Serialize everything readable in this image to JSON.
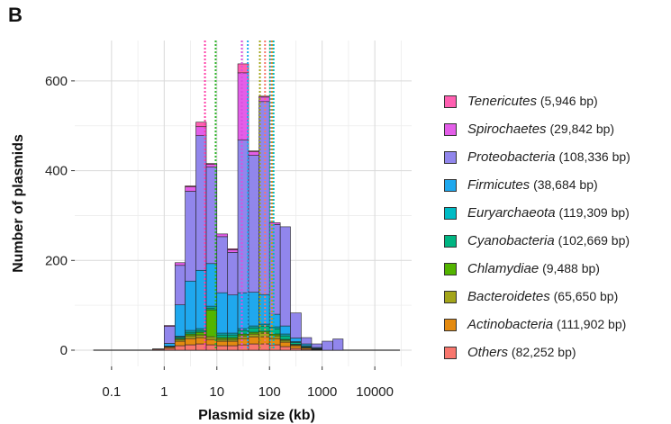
{
  "panel_label": "B",
  "chart_data": {
    "type": "bar",
    "stacked": true,
    "xscale": "log",
    "xlabel": "Plasmid size (kb)",
    "ylabel": "Number of plasmids",
    "ylim": [
      0,
      690
    ],
    "xlim": [
      0.02,
      50000
    ],
    "x_ticks": [
      0.1,
      1,
      10,
      100,
      1000,
      10000
    ],
    "x_tick_labels": [
      "0.1",
      "1",
      "10",
      "100",
      "1000",
      "10000"
    ],
    "y_ticks": [
      0,
      200,
      400,
      600
    ],
    "y_tick_labels": [
      "0",
      "200",
      "400",
      "600"
    ],
    "grid": true,
    "legend_position": "right",
    "bins_kb": [
      [
        0.6,
        1.0
      ],
      [
        1.0,
        1.6
      ],
      [
        1.6,
        2.5
      ],
      [
        2.5,
        4.0
      ],
      [
        4.0,
        6.3
      ],
      [
        6.3,
        10
      ],
      [
        10,
        16
      ],
      [
        16,
        25
      ],
      [
        25,
        40
      ],
      [
        40,
        63
      ],
      [
        63,
        100
      ],
      [
        100,
        160
      ],
      [
        160,
        250
      ],
      [
        250,
        400
      ],
      [
        400,
        630
      ],
      [
        630,
        1000
      ],
      [
        1000,
        1600
      ],
      [
        1600,
        2500
      ]
    ],
    "series": [
      {
        "name": "Others",
        "size": "(82,252 bp)",
        "color": "#f8766d",
        "values": [
          2,
          4,
          10,
          12,
          14,
          12,
          10,
          10,
          12,
          14,
          14,
          12,
          8,
          4,
          2,
          1,
          0,
          0
        ]
      },
      {
        "name": "Actinobacteria",
        "size": "(111,902 bp)",
        "color": "#e48a10",
        "values": [
          1,
          3,
          10,
          14,
          14,
          12,
          10,
          10,
          14,
          16,
          16,
          14,
          10,
          6,
          3,
          1,
          0,
          0
        ]
      },
      {
        "name": "Bacteroidetes",
        "size": "(65,650 bp)",
        "color": "#a3a51a",
        "values": [
          0,
          1,
          4,
          6,
          6,
          6,
          4,
          4,
          6,
          6,
          8,
          6,
          4,
          2,
          1,
          0,
          0,
          0
        ]
      },
      {
        "name": "Chlamydiae",
        "size": "(9,488 bp)",
        "color": "#53b400",
        "values": [
          0,
          0,
          2,
          4,
          6,
          60,
          4,
          4,
          4,
          4,
          4,
          4,
          2,
          1,
          0,
          0,
          0,
          0
        ]
      },
      {
        "name": "Cyanobacteria",
        "size": "(102,669 bp)",
        "color": "#00b582",
        "values": [
          0,
          1,
          3,
          4,
          4,
          4,
          6,
          6,
          8,
          10,
          12,
          12,
          8,
          4,
          2,
          1,
          0,
          0
        ]
      },
      {
        "name": "Euryarchaeota",
        "size": "(119,309 bp)",
        "color": "#00bbc5",
        "values": [
          0,
          0,
          2,
          4,
          4,
          4,
          4,
          4,
          4,
          4,
          4,
          4,
          4,
          2,
          2,
          1,
          0,
          0
        ]
      },
      {
        "name": "Firmicutes",
        "size": "(38,684 bp)",
        "color": "#1fa8ee",
        "values": [
          0,
          6,
          70,
          110,
          130,
          95,
          90,
          85,
          80,
          75,
          66,
          28,
          18,
          8,
          4,
          2,
          0,
          0
        ]
      },
      {
        "name": "Proteobacteria",
        "size": "(108,336 bp)",
        "color": "#9186ec",
        "values": [
          0,
          38,
          88,
          200,
          300,
          215,
          125,
          95,
          340,
          305,
          430,
          200,
          221,
          56,
          14,
          8,
          20,
          25
        ]
      },
      {
        "name": "Spirochaetes",
        "size": "(29,842 bp)",
        "color": "#e35ee8",
        "values": [
          0,
          2,
          6,
          10,
          20,
          6,
          6,
          6,
          150,
          8,
          10,
          4,
          0,
          0,
          0,
          0,
          0,
          0
        ]
      },
      {
        "name": "Tenericutes",
        "size": "(5,946 bp)",
        "color": "#ff5fb1",
        "values": [
          0,
          0,
          0,
          2,
          10,
          2,
          0,
          2,
          20,
          2,
          2,
          0,
          0,
          0,
          0,
          0,
          0,
          0
        ]
      }
    ],
    "median_lines_kb": [
      {
        "series": "Tenericutes",
        "x": 5.946,
        "color": "#ff3fa8"
      },
      {
        "series": "Chlamydiae",
        "x": 9.488,
        "color": "#2fb52a"
      },
      {
        "series": "Spirochaetes",
        "x": 29.842,
        "color": "#d94fe0"
      },
      {
        "series": "Firmicutes",
        "x": 38.684,
        "color": "#1fa8ee"
      },
      {
        "series": "Bacteroidetes",
        "x": 65.65,
        "color": "#a3a51a"
      },
      {
        "series": "Others",
        "x": 82.252,
        "color": "#f8766d"
      },
      {
        "series": "Cyanobacteria",
        "x": 102.669,
        "color": "#00b582"
      },
      {
        "series": "Proteobacteria",
        "x": 108.336,
        "color": "#9186ec"
      },
      {
        "series": "Actinobacteria",
        "x": 111.902,
        "color": "#e48a10"
      },
      {
        "series": "Euryarchaeota",
        "x": 119.309,
        "color": "#00bbc5"
      }
    ]
  },
  "legend": {
    "items": [
      {
        "name": "Tenericutes",
        "size": "(5,946 bp)",
        "color": "#ff5fb1"
      },
      {
        "name": "Spirochaetes",
        "size": "(29,842 bp)",
        "color": "#e35ee8"
      },
      {
        "name": "Proteobacteria",
        "size": "(108,336 bp)",
        "color": "#9186ec"
      },
      {
        "name": "Firmicutes",
        "size": "(38,684 bp)",
        "color": "#1fa8ee"
      },
      {
        "name": "Euryarchaeota",
        "size": "(119,309 bp)",
        "color": "#00bbc5"
      },
      {
        "name": "Cyanobacteria",
        "size": "(102,669 bp)",
        "color": "#00b582"
      },
      {
        "name": "Chlamydiae",
        "size": "(9,488 bp)",
        "color": "#53b400"
      },
      {
        "name": "Bacteroidetes",
        "size": "(65,650 bp)",
        "color": "#a3a51a"
      },
      {
        "name": "Actinobacteria",
        "size": "(111,902 bp)",
        "color": "#e48a10"
      },
      {
        "name": "Others",
        "size": "(82,252 bp)",
        "color": "#f8766d"
      }
    ]
  }
}
